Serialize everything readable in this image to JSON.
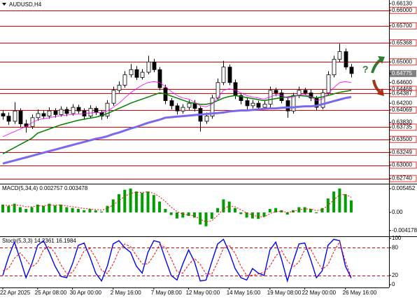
{
  "chart_data": [
    {
      "type": "candlestick",
      "title": "AUDUSD,H4",
      "open": [
        0.64,
        0.6395,
        0.6385,
        0.6405,
        0.638,
        0.6375,
        0.6392,
        0.64,
        0.6395,
        0.6405,
        0.6398,
        0.6408,
        0.64,
        0.6412,
        0.6405,
        0.6395,
        0.641,
        0.6402,
        0.6395,
        0.642,
        0.6445,
        0.6455,
        0.6475,
        0.6485,
        0.647,
        0.648,
        0.65,
        0.6485,
        0.645,
        0.6425,
        0.6415,
        0.6405,
        0.6412,
        0.642,
        0.641,
        0.6385,
        0.6395,
        0.643,
        0.646,
        0.649,
        0.646,
        0.6435,
        0.6425,
        0.6415,
        0.642,
        0.6412,
        0.6418,
        0.6445,
        0.644,
        0.6425,
        0.6405,
        0.6435,
        0.6445,
        0.644,
        0.643,
        0.6412,
        0.644,
        0.6475,
        0.6505,
        0.652,
        0.649
      ],
      "high": [
        0.6407,
        0.6402,
        0.6422,
        0.641,
        0.6388,
        0.6398,
        0.6408,
        0.6406,
        0.6412,
        0.641,
        0.6414,
        0.6413,
        0.6418,
        0.6417,
        0.641,
        0.6416,
        0.6414,
        0.6406,
        0.6426,
        0.6452,
        0.6462,
        0.6482,
        0.6496,
        0.6492,
        0.6486,
        0.6512,
        0.6506,
        0.649,
        0.6456,
        0.643,
        0.642,
        0.6418,
        0.6426,
        0.6426,
        0.6414,
        0.6402,
        0.6436,
        0.6468,
        0.6502,
        0.6495,
        0.6466,
        0.644,
        0.643,
        0.6426,
        0.6425,
        0.6424,
        0.6452,
        0.645,
        0.6446,
        0.643,
        0.644,
        0.6452,
        0.645,
        0.6446,
        0.6434,
        0.6446,
        0.6482,
        0.6512,
        0.6535,
        0.6526,
        0.6496
      ],
      "low": [
        0.6388,
        0.6378,
        0.638,
        0.6374,
        0.6363,
        0.637,
        0.6386,
        0.639,
        0.639,
        0.6392,
        0.6394,
        0.6395,
        0.6396,
        0.64,
        0.6388,
        0.639,
        0.6397,
        0.6388,
        0.639,
        0.6415,
        0.644,
        0.645,
        0.647,
        0.6465,
        0.6466,
        0.6476,
        0.648,
        0.6445,
        0.6418,
        0.6408,
        0.6398,
        0.64,
        0.6407,
        0.6404,
        0.6365,
        0.638,
        0.639,
        0.6425,
        0.6455,
        0.6455,
        0.6428,
        0.6418,
        0.6408,
        0.641,
        0.6406,
        0.6408,
        0.6412,
        0.6434,
        0.642,
        0.6392,
        0.64,
        0.643,
        0.6436,
        0.6424,
        0.6406,
        0.6408,
        0.6436,
        0.647,
        0.65,
        0.6485,
        0.647
      ],
      "close": [
        0.6395,
        0.6385,
        0.6405,
        0.638,
        0.6375,
        0.6392,
        0.64,
        0.6395,
        0.6405,
        0.6398,
        0.6408,
        0.64,
        0.6412,
        0.6405,
        0.6395,
        0.641,
        0.6402,
        0.6395,
        0.642,
        0.6445,
        0.6455,
        0.6475,
        0.6485,
        0.647,
        0.648,
        0.65,
        0.6485,
        0.645,
        0.6425,
        0.6415,
        0.6405,
        0.6412,
        0.642,
        0.641,
        0.6385,
        0.6395,
        0.643,
        0.646,
        0.649,
        0.646,
        0.6435,
        0.6425,
        0.6415,
        0.642,
        0.6412,
        0.6418,
        0.6445,
        0.644,
        0.6425,
        0.6405,
        0.6435,
        0.6445,
        0.644,
        0.643,
        0.6412,
        0.644,
        0.6475,
        0.6505,
        0.652,
        0.649,
        0.64775
      ],
      "up_color": "#ffffff",
      "down_color": "#000000",
      "series": [
        {
          "color": "#7b68ee",
          "width": 3,
          "values": [
            0.6303,
            0.6306,
            0.6309,
            0.6312,
            0.6315,
            0.6318,
            0.6321,
            0.6324,
            0.6327,
            0.633,
            0.6333,
            0.6336,
            0.6339,
            0.6342,
            0.6345,
            0.6348,
            0.6351,
            0.6353,
            0.6356,
            0.636,
            0.6363,
            0.6367,
            0.6371,
            0.6374,
            0.6378,
            0.6382,
            0.6385,
            0.6388,
            0.6392,
            0.6393,
            0.6394,
            0.6395,
            0.6396,
            0.6397,
            0.6398,
            0.6399,
            0.64,
            0.6401,
            0.6402,
            0.6404,
            0.6405,
            0.6406,
            0.6406,
            0.6407,
            0.6408,
            0.6409,
            0.641,
            0.641,
            0.6411,
            0.6412,
            0.6412,
            0.6413,
            0.6414,
            0.6414,
            0.6415,
            0.6418,
            0.6421,
            0.6424,
            0.6427,
            0.643,
            0.6432
          ]
        },
        {
          "color": "#008000",
          "width": 1.5,
          "values": [
            0.6322,
            0.6328,
            0.6334,
            0.634,
            0.6346,
            0.6352,
            0.6362,
            0.6366,
            0.637,
            0.6374,
            0.6378,
            0.6381,
            0.6384,
            0.6387,
            0.6389,
            0.6391,
            0.6393,
            0.6396,
            0.64,
            0.6405,
            0.641,
            0.6415,
            0.642,
            0.6424,
            0.6428,
            0.6432,
            0.6436,
            0.644,
            0.6438,
            0.6434,
            0.643,
            0.6426,
            0.6422,
            0.642,
            0.6418,
            0.6418,
            0.642,
            0.6425,
            0.643,
            0.6433,
            0.6435,
            0.6433,
            0.6431,
            0.6429,
            0.6427,
            0.6425,
            0.6427,
            0.6429,
            0.6431,
            0.6432,
            0.6434,
            0.6435,
            0.6434,
            0.6432,
            0.643,
            0.6432,
            0.6435,
            0.6438,
            0.6441,
            0.6443,
            0.6445
          ]
        },
        {
          "color": "#ff00ff",
          "width": 0.8,
          "values": [
            0.6355,
            0.636,
            0.6365,
            0.637,
            0.6375,
            0.6382,
            0.6388,
            0.639,
            0.6392,
            0.6394,
            0.6396,
            0.6397,
            0.6398,
            0.6399,
            0.64,
            0.6401,
            0.6402,
            0.6402,
            0.6405,
            0.6412,
            0.642,
            0.643,
            0.644,
            0.6448,
            0.6455,
            0.646,
            0.6462,
            0.646,
            0.6452,
            0.6443,
            0.6435,
            0.643,
            0.6428,
            0.6422,
            0.6415,
            0.6413,
            0.6418,
            0.643,
            0.6445,
            0.6448,
            0.6445,
            0.644,
            0.6435,
            0.6432,
            0.643,
            0.6428,
            0.6432,
            0.6436,
            0.6435,
            0.643,
            0.6432,
            0.6436,
            0.6437,
            0.6433,
            0.6425,
            0.6428,
            0.6438,
            0.645,
            0.646,
            0.6462,
            0.646
          ]
        }
      ],
      "ylim": [
        0.6264,
        0.662
      ],
      "yticks": [
        {
          "value": 0.6613,
          "label": "0.66130"
        },
        {
          "value": 0.66,
          "label": "0.66000"
        },
        {
          "value": 0.657,
          "label": "0.65700"
        },
        0.65368,
        {
          "value": 0.65,
          "label": "0.65000"
        },
        0.64775,
        {
          "value": 0.646,
          "label": "0.64600"
        },
        0.64468,
        0.64387,
        {
          "value": 0.642,
          "label": "0.64200"
        },
        0.64069,
        {
          "value": 0.6383,
          "label": "0.63830"
        },
        0.63735,
        {
          "value": 0.635,
          "label": "0.63500"
        },
        0.63249,
        {
          "value": 0.63,
          "label": "0.63000"
        },
        {
          "value": 0.6274,
          "label": "0.62740"
        }
      ],
      "levels": [
        0.66,
        0.657,
        0.65368,
        0.65,
        0.64468,
        0.64387,
        0.64069,
        0.63735,
        0.635,
        0.63249,
        0.63,
        0.6274
      ],
      "level_color": "#e00000",
      "last_price": 0.64775,
      "annotations": [
        "?"
      ]
    },
    {
      "type": "macd",
      "title": "MACD(5,34,4) 0.002757 0.003478",
      "values": [
        0.0018,
        0.0015,
        0.002,
        0.0012,
        0.0008,
        0.0012,
        0.0018,
        0.0015,
        0.002,
        0.0016,
        0.0018,
        0.0012,
        0.001,
        0.0008,
        0.0005,
        0.0008,
        0.0005,
        0.0002,
        0.0015,
        0.003,
        0.0042,
        0.0052,
        0.0055,
        0.0048,
        0.0045,
        0.0048,
        0.004,
        0.0025,
        0.0008,
        -0.0006,
        -0.0014,
        -0.0012,
        -0.0008,
        -0.0012,
        -0.0028,
        -0.0032,
        -0.0015,
        0.001,
        0.003,
        0.0025,
        0.001,
        -0.0004,
        -0.0012,
        -0.0014,
        -0.0015,
        -0.001,
        0.0008,
        0.001,
        0.0005,
        -0.0005,
        0.0005,
        0.0012,
        0.0012,
        0.0008,
        -0.0002,
        0.001,
        0.0032,
        0.0048,
        0.0055,
        0.0042,
        0.002757
      ],
      "color": "#00a000",
      "signal": {
        "color": "#ff0000",
        "values": [
          0.0016,
          0.0016,
          0.0017,
          0.0016,
          0.0013,
          0.0013,
          0.0015,
          0.0015,
          0.0017,
          0.0017,
          0.0017,
          0.0015,
          0.0013,
          0.0011,
          0.0009,
          0.0008,
          0.0007,
          0.0005,
          0.0009,
          0.0017,
          0.0027,
          0.0037,
          0.0044,
          0.0046,
          0.0046,
          0.0047,
          0.0044,
          0.0036,
          0.0025,
          0.0012,
          0.0002,
          -0.0004,
          -0.0006,
          -0.0008,
          -0.0016,
          -0.0022,
          -0.0019,
          -0.0007,
          0.0008,
          0.0015,
          0.0013,
          0.0006,
          -0.0001,
          -0.0006,
          -0.001,
          -0.001,
          -0.0003,
          0.0002,
          0.0003,
          0.0,
          0.0002,
          0.0006,
          0.0008,
          0.0008,
          0.0004,
          0.0006,
          0.0016,
          0.0029,
          0.004,
          0.0041,
          0.003478
        ]
      },
      "ylim": [
        -0.0055,
        0.0066
      ],
      "yticks": [
        0.005452,
        {
          "value": 0,
          "label": "0.00"
        },
        -0.004178
      ]
    },
    {
      "type": "line",
      "title": "Stoch(5,3,3) 14.2361 16.1984",
      "categories": [
        "22 Apr 2025",
        null,
        null,
        null,
        null,
        null,
        "25 Apr 08:00",
        null,
        null,
        null,
        null,
        null,
        "30 Apr 00:00",
        null,
        null,
        null,
        null,
        null,
        null,
        "2 May 16:00",
        null,
        null,
        null,
        null,
        null,
        null,
        "7 May 08:00",
        null,
        null,
        null,
        null,
        null,
        "12 May 00:00",
        null,
        null,
        null,
        null,
        null,
        null,
        "14 May 16:00",
        null,
        null,
        null,
        null,
        null,
        null,
        "19 May 08:00",
        null,
        null,
        null,
        null,
        null,
        "22 May 00:00",
        null,
        null,
        null,
        null,
        null,
        null,
        "26 May 16:00",
        null
      ],
      "series": [
        {
          "color": "#0000ff",
          "values": [
            20,
            60,
            92,
            55,
            15,
            45,
            85,
            95,
            70,
            40,
            18,
            15,
            45,
            85,
            90,
            60,
            25,
            8,
            40,
            88,
            95,
            80,
            70,
            40,
            25,
            70,
            95,
            92,
            55,
            20,
            10,
            45,
            75,
            50,
            8,
            10,
            50,
            88,
            98,
            70,
            35,
            15,
            10,
            35,
            25,
            20,
            75,
            92,
            55,
            8,
            50,
            88,
            90,
            55,
            15,
            30,
            85,
            98,
            95,
            40,
            14.2361
          ]
        },
        {
          "color": "#ff0000",
          "dash": true,
          "values": [
            30,
            35,
            57,
            69,
            54,
            38,
            48,
            75,
            83,
            68,
            43,
            24,
            26,
            48,
            73,
            78,
            58,
            31,
            24,
            45,
            74,
            88,
            82,
            63,
            45,
            45,
            63,
            86,
            81,
            56,
            28,
            25,
            43,
            57,
            44,
            23,
            23,
            49,
            79,
            85,
            68,
            40,
            20,
            20,
            23,
            27,
            40,
            62,
            74,
            52,
            38,
            49,
            76,
            78,
            53,
            33,
            43,
            71,
            93,
            50,
            16.1984
          ]
        }
      ],
      "ylim": [
        0,
        100
      ],
      "yticks": [
        100,
        80,
        20,
        0
      ],
      "levels": [
        80,
        20
      ],
      "level_color": "#e00000"
    }
  ]
}
